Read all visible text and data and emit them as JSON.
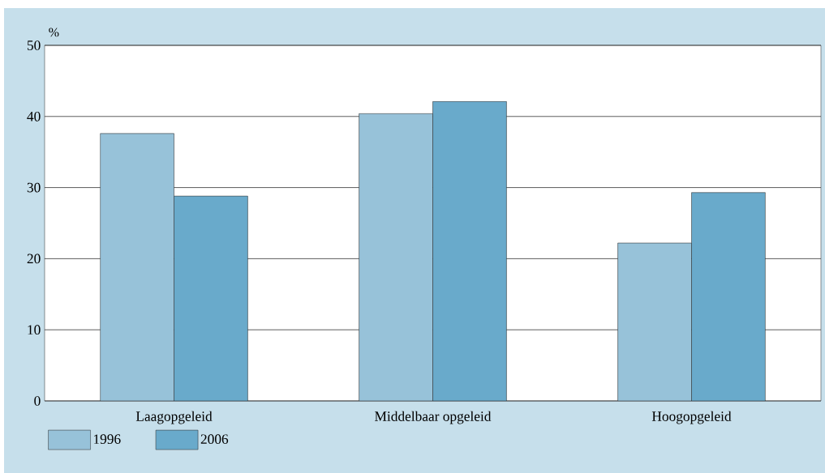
{
  "chart_data": {
    "type": "bar",
    "ylabel": "%",
    "categories": [
      "Laagopgeleid",
      "Middelbaar opgeleid",
      "Hoogopgeleid"
    ],
    "series": [
      {
        "name": "1996",
        "color": "#97c2d9",
        "values": [
          37.6,
          40.4,
          22.2
        ]
      },
      {
        "name": "2006",
        "color": "#69aacb",
        "values": [
          28.8,
          42.1,
          29.3
        ]
      }
    ],
    "ylim": [
      0,
      50
    ],
    "yticks": [
      0,
      10,
      20,
      30,
      40,
      50
    ],
    "grid": "y",
    "legend": "bottom left"
  }
}
